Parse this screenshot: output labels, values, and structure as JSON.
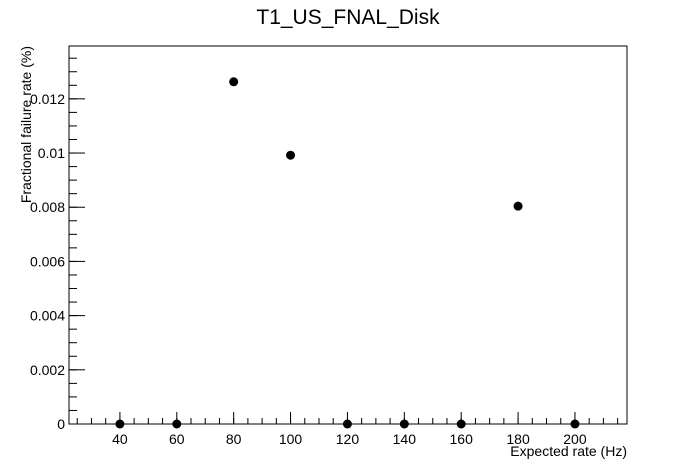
{
  "chart_data": {
    "type": "scatter",
    "title": "T1_US_FNAL_Disk",
    "x_label": "Expected rate (Hz)",
    "y_label": "Fractional failure rate (%)",
    "x": [
      40,
      60,
      80,
      100,
      120,
      140,
      160,
      180,
      200
    ],
    "values": [
      0,
      0,
      0.01263,
      0.00992,
      0,
      0,
      0,
      0.00804,
      0
    ],
    "color": "#000000",
    "xlim": [
      22.1,
      218.3
    ],
    "ylim": [
      0,
      0.01395
    ],
    "xticks": [
      40,
      60,
      80,
      100,
      120,
      140,
      160,
      180,
      200
    ],
    "yticks": [
      0,
      0.002,
      0.004,
      0.006,
      0.008,
      0.01,
      0.012
    ]
  }
}
